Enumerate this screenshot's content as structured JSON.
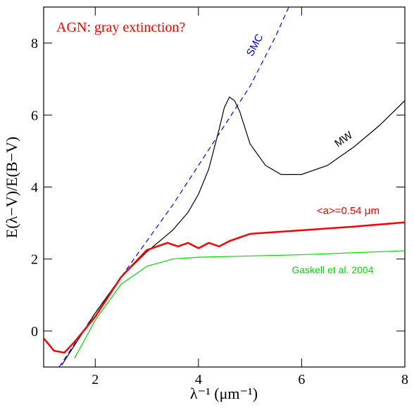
{
  "chart_data": {
    "type": "line",
    "xlabel": "λ⁻¹ (μm⁻¹)",
    "ylabel": "E(λ−V)/E(B−V)",
    "annotation": "AGN: gray extinction?",
    "xlim": [
      1,
      8
    ],
    "ylim": [
      -1,
      9
    ],
    "xticks": [
      2,
      4,
      6,
      8
    ],
    "yticks": [
      0,
      2,
      4,
      6,
      8
    ],
    "series": [
      {
        "name": "SMC",
        "color": "#0000ff",
        "linestyle": "dashed",
        "x": [
          1.3,
          2,
          2.5,
          3,
          3.5,
          4,
          4.5,
          5,
          5.5,
          5.75
        ],
        "values": [
          -1,
          0.5,
          1.5,
          2.5,
          3.5,
          4.6,
          5.7,
          6.8,
          8.2,
          9
        ]
      },
      {
        "name": "MW",
        "color": "#000000",
        "linestyle": "solid",
        "x": [
          1.35,
          2,
          2.5,
          3,
          3.5,
          3.8,
          4,
          4.2,
          4.4,
          4.5,
          4.6,
          4.7,
          4.8,
          5,
          5.3,
          5.6,
          6,
          6.5,
          7,
          7.5,
          8
        ],
        "values": [
          -0.95,
          0.5,
          1.5,
          2.2,
          2.8,
          3.3,
          3.8,
          4.5,
          5.6,
          6.2,
          6.5,
          6.4,
          6.1,
          5.2,
          4.6,
          4.35,
          4.35,
          4.6,
          5.1,
          5.7,
          6.4
        ]
      },
      {
        "name": "<a>=0.54 μm",
        "color": "#ff0000",
        "linestyle": "solid",
        "x": [
          1,
          1.2,
          1.4,
          1.6,
          2,
          2.5,
          3,
          3.2,
          3.4,
          3.6,
          3.8,
          4,
          4.2,
          4.4,
          4.6,
          4.8,
          5,
          5.5,
          6,
          7,
          8
        ],
        "values": [
          -0.2,
          -0.55,
          -0.6,
          -0.3,
          0.4,
          1.5,
          2.25,
          2.35,
          2.45,
          2.35,
          2.45,
          2.3,
          2.45,
          2.35,
          2.5,
          2.6,
          2.7,
          2.75,
          2.8,
          2.9,
          3.02
        ]
      },
      {
        "name": "Gaskell et al. 2004",
        "color": "#00e000",
        "linestyle": "solid",
        "x": [
          1.6,
          2,
          2.5,
          3,
          3.5,
          4,
          6,
          8
        ],
        "values": [
          -0.75,
          0.3,
          1.3,
          1.8,
          2.0,
          2.05,
          2.12,
          2.23
        ]
      }
    ]
  }
}
